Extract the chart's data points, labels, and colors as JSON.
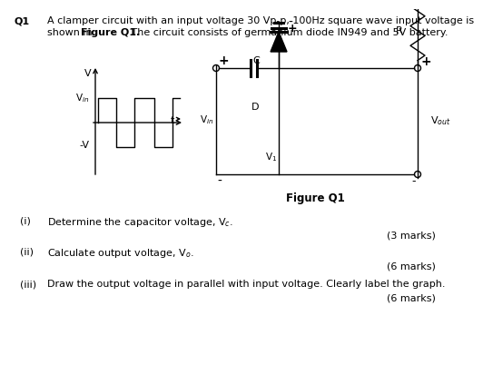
{
  "title_label": "Q1",
  "title_text1": "A clamper circuit with an input voltage 30 Vp-p, 100Hz square wave input voltage is",
  "title_text2": "shown in ",
  "title_text2b": "Figure Q1.",
  "title_text2c": " The circuit consists of germanium diode IN949 and 5V battery.",
  "figure_caption": "Figure Q1",
  "q_i": "(i)",
  "q_i_text": "Determine the capacitor voltage, V$_c$.",
  "q_i_marks": "(3 marks)",
  "q_ii": "(ii)",
  "q_ii_text": "Calculate output voltage, V$_o$.",
  "q_ii_marks": "(6 marks)",
  "q_iii": "(iii)",
  "q_iii_text": "Draw the output voltage in parallel with input voltage. Clearly label the graph.",
  "q_iii_marks": "(6 marks)",
  "bg_color": "#ffffff",
  "text_color": "#000000"
}
